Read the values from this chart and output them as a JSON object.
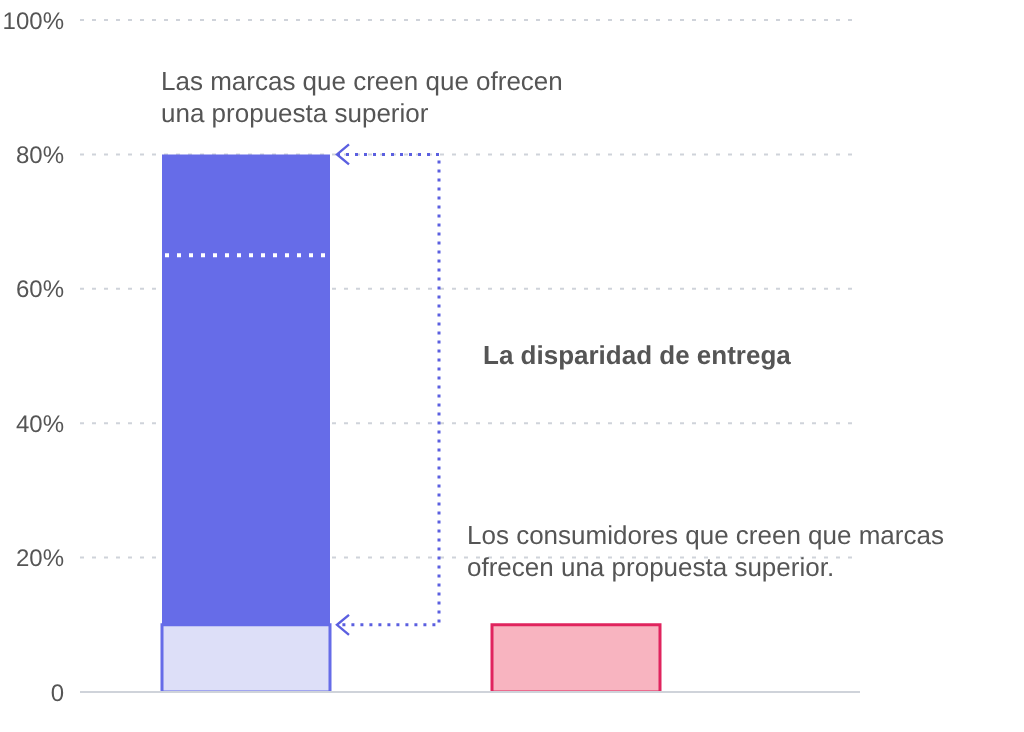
{
  "chart_data": {
    "type": "bar",
    "stacked": true,
    "categories": [
      null,
      null
    ],
    "series": [
      {
        "color": "#dddff8",
        "colors": [
          "#dddff8",
          "#f8b4c0"
        ],
        "values": [
          10,
          10
        ]
      },
      {
        "color": "#666ce8",
        "values": [
          70,
          null
        ]
      }
    ],
    "ylim": [
      0,
      100
    ],
    "yticks": [
      0,
      {
        "value": 20,
        "label": "20%"
      },
      {
        "value": 40,
        "label": "40%"
      },
      {
        "value": 60,
        "label": "60%"
      },
      {
        "value": 80,
        "label": "80%"
      },
      {
        "value": 100,
        "label": "100%"
      }
    ],
    "grid": "y",
    "ref_lines": [
      {
        "axis": "y",
        "value": 65,
        "color": "#ffffff",
        "line_style": "dotted"
      }
    ],
    "annotations": [
      "Las marcas que creen que ofrecen una propuesta superior",
      "La disparidad de entrega",
      "Los consumidores que creen que marcas ofrecen una propuesta superior."
    ]
  }
}
